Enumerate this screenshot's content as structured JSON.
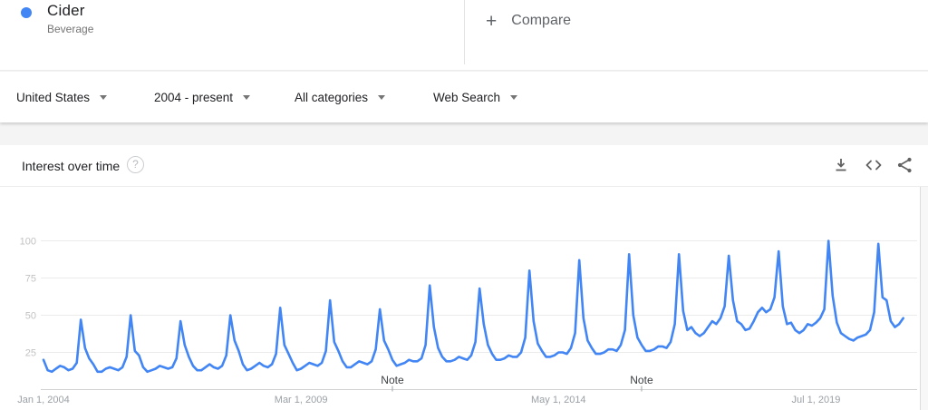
{
  "term_card": {
    "term": "Cider",
    "type": "Beverage",
    "dot_color": "#4285f4",
    "dot_icon": "legend-dot-icon"
  },
  "compare": {
    "plus_icon": "plus-icon",
    "plus": "+",
    "label": "Compare"
  },
  "filters": [
    {
      "label": "United States",
      "icon": "dropdown-caret-icon"
    },
    {
      "label": "2004 - present",
      "icon": "dropdown-caret-icon"
    },
    {
      "label": "All categories",
      "icon": "dropdown-caret-icon"
    },
    {
      "label": "Web Search",
      "icon": "dropdown-caret-icon"
    }
  ],
  "section": {
    "title": "Interest over time",
    "help": {
      "icon": "help-icon",
      "glyph": "?"
    },
    "actions": [
      {
        "icon": "download-icon"
      },
      {
        "icon": "embed-icon"
      },
      {
        "icon": "share-icon"
      }
    ]
  },
  "chart_data": {
    "type": "line",
    "series_name": "Cider",
    "line_color": "#4285f4",
    "grid": "horizontal",
    "legend_position": "none",
    "ylim": [
      0,
      100
    ],
    "y_ticks": [
      25,
      50,
      75,
      100
    ],
    "x_ticks": [
      "Jan 1, 2004",
      "Mar 1, 2009",
      "May 1, 2014",
      "Jul 1, 2019"
    ],
    "x_tick_month_offsets": [
      0,
      62,
      124,
      186
    ],
    "x_start_label": "Jan 1, 2004",
    "notes": [
      {
        "label": "Note",
        "month_offset": 84
      },
      {
        "label": "Note",
        "month_offset": 144
      }
    ],
    "values_note": "monthly interest 0-100, Jan 2004 onward (estimated from pixels)",
    "values_monthly": [
      20,
      13,
      12,
      14,
      16,
      15,
      13,
      14,
      18,
      47,
      28,
      21,
      17,
      12,
      12,
      14,
      15,
      14,
      13,
      15,
      22,
      50,
      26,
      23,
      15,
      12,
      13,
      14,
      16,
      15,
      14,
      15,
      21,
      46,
      30,
      22,
      16,
      13,
      13,
      15,
      17,
      15,
      14,
      16,
      23,
      50,
      33,
      26,
      17,
      13,
      14,
      16,
      18,
      16,
      15,
      17,
      24,
      55,
      30,
      24,
      18,
      13,
      14,
      16,
      18,
      17,
      16,
      18,
      26,
      60,
      32,
      26,
      19,
      15,
      15,
      17,
      19,
      18,
      17,
      19,
      27,
      54,
      33,
      27,
      20,
      16,
      17,
      18,
      20,
      19,
      19,
      21,
      30,
      70,
      42,
      28,
      22,
      19,
      19,
      20,
      22,
      21,
      20,
      23,
      32,
      68,
      44,
      30,
      24,
      20,
      20,
      21,
      23,
      22,
      22,
      25,
      35,
      80,
      46,
      31,
      26,
      22,
      22,
      23,
      25,
      25,
      24,
      28,
      38,
      87,
      48,
      33,
      28,
      24,
      24,
      25,
      27,
      27,
      26,
      30,
      40,
      91,
      50,
      35,
      30,
      26,
      26,
      27,
      29,
      29,
      28,
      32,
      44,
      91,
      53,
      40,
      42,
      38,
      36,
      38,
      42,
      46,
      44,
      48,
      56,
      90,
      60,
      46,
      44,
      40,
      41,
      46,
      52,
      55,
      52,
      54,
      62,
      93,
      56,
      44,
      45,
      40,
      38,
      40,
      44,
      43,
      45,
      48,
      54,
      100,
      63,
      45,
      38,
      36,
      34,
      33,
      35,
      36,
      37,
      40,
      52,
      98,
      62,
      60,
      46,
      42,
      44,
      48
    ]
  }
}
